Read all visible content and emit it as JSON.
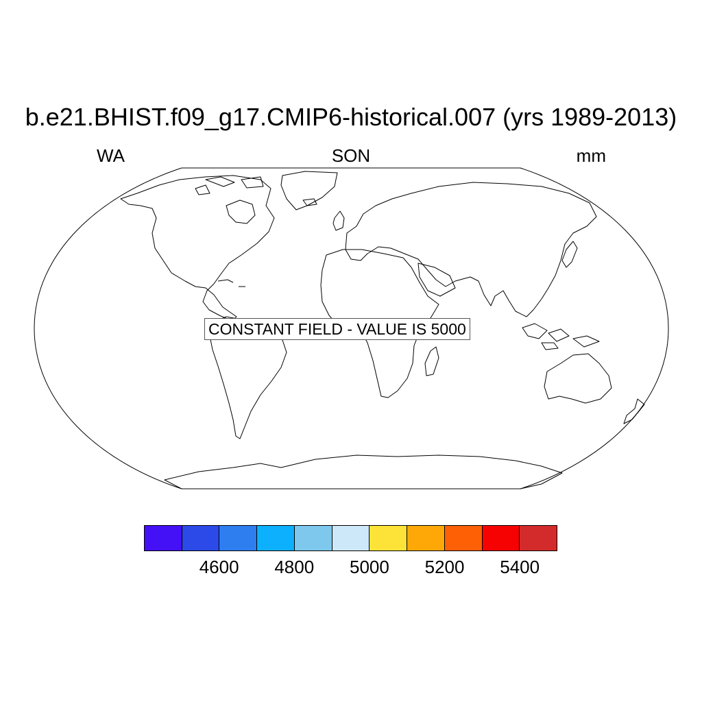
{
  "title": "b.e21.BHIST.f09_g17.CMIP6-historical.007 (yrs 1989-2013)",
  "left_label": "WA",
  "center_label": "SON",
  "right_label": "mm",
  "notice": "CONSTANT FIELD - VALUE IS 5000",
  "colorbar": {
    "colors": [
      "#4410f5",
      "#2b4ae8",
      "#2e7ef0",
      "#0cb0fc",
      "#7ec8ee",
      "#cde8f8",
      "#fde337",
      "#fda807",
      "#fe6006",
      "#f70202",
      "#d32b2b"
    ],
    "tick_labels": [
      "4600",
      "4800",
      "5000",
      "5200",
      "5400"
    ]
  },
  "map": {
    "projection": "Robinson",
    "coastline_color": "#000000"
  }
}
